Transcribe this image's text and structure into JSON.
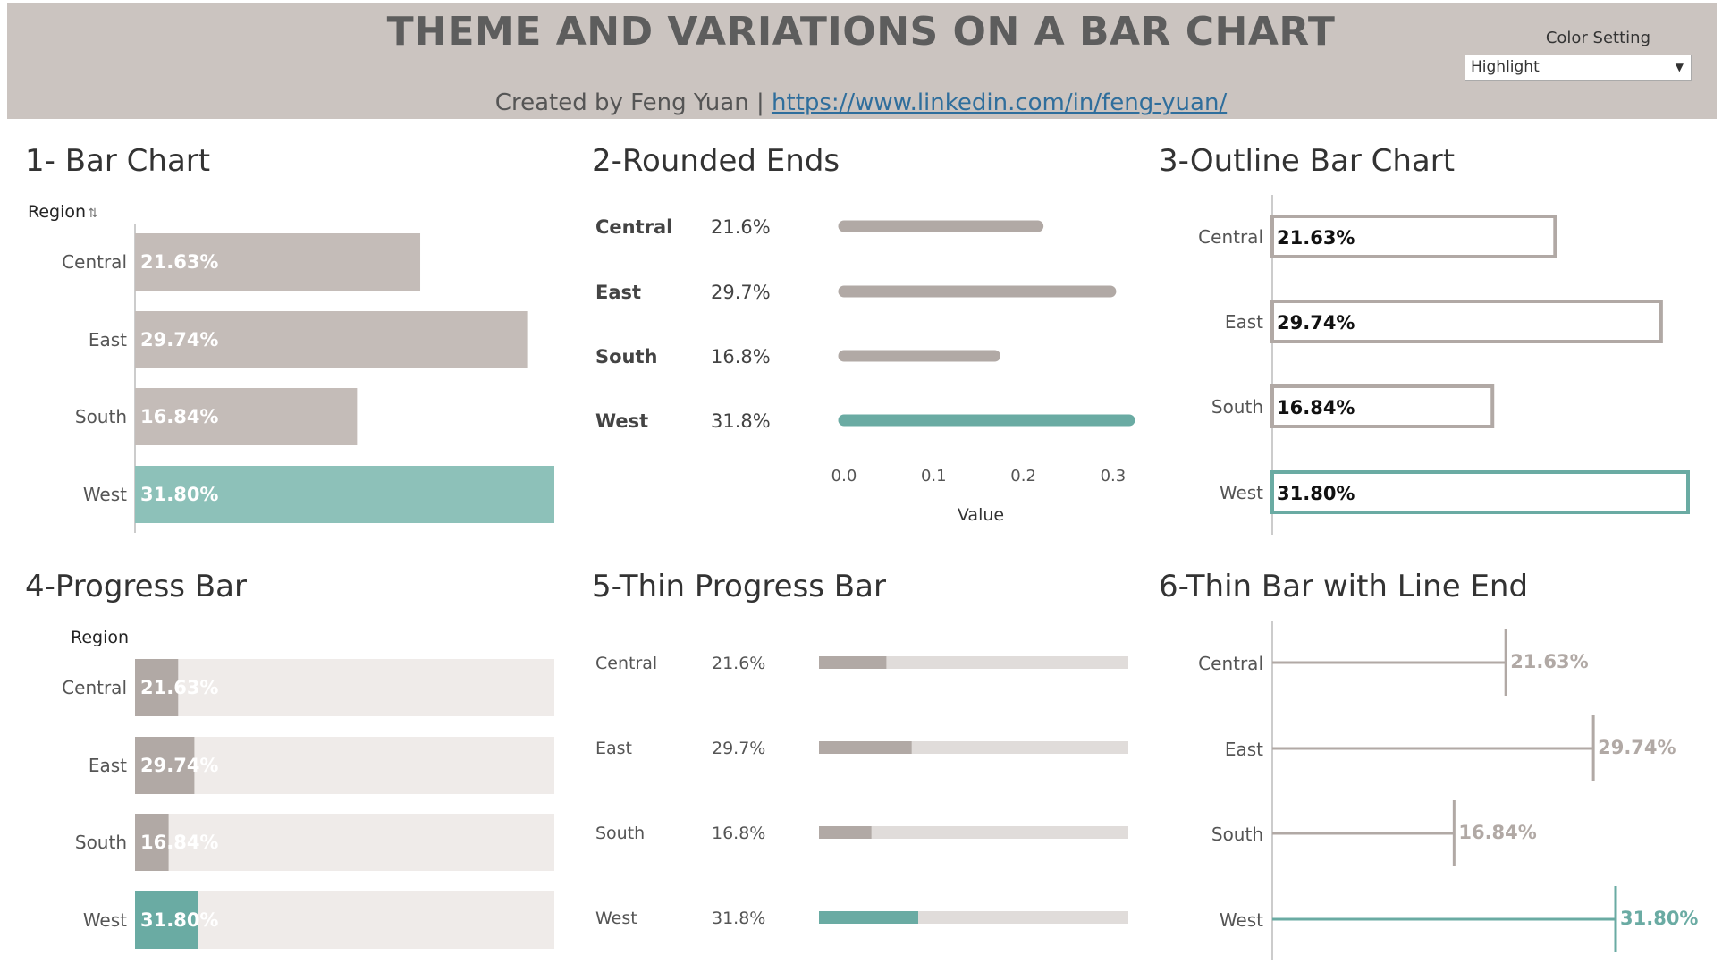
{
  "header": {
    "title": "THEME AND VARIATIONS ON A BAR CHART",
    "created_by": "Created by Feng Yuan |",
    "link": "https://www.linkedin.com/in/feng-yuan/",
    "color_setting_label": "Color Setting",
    "color_setting_value": "Highlight"
  },
  "colors": {
    "base": "#c4bcb8",
    "base_dark": "#b1a9a5",
    "highlight": "#8dc1b9",
    "highlight_dark": "#6aaba3",
    "track": "#efebe9",
    "thin_track": "#e0dcda"
  },
  "panels": {
    "p1": {
      "title": "1- Bar Chart",
      "field": "Region"
    },
    "p2": {
      "title": "2-Rounded Ends",
      "axis_title": "Value"
    },
    "p3": {
      "title": "3-Outline Bar Chart"
    },
    "p4": {
      "title": "4-Progress Bar",
      "field": "Region"
    },
    "p5": {
      "title": "5-Thin Progress Bar"
    },
    "p6": {
      "title": "6-Thin Bar with Line End"
    }
  },
  "chart_data": [
    {
      "type": "bar",
      "title": "1- Bar Chart",
      "categories": [
        "Central",
        "East",
        "South",
        "West"
      ],
      "values": [
        0.2163,
        0.2974,
        0.1684,
        0.318
      ],
      "labels": [
        "21.63%",
        "29.74%",
        "16.84%",
        "31.80%"
      ],
      "highlight": "West"
    },
    {
      "type": "bar",
      "title": "2-Rounded Ends",
      "categories": [
        "Central",
        "East",
        "South",
        "West"
      ],
      "values": [
        0.216,
        0.297,
        0.168,
        0.318
      ],
      "labels": [
        "21.6%",
        "29.7%",
        "16.8%",
        "31.8%"
      ],
      "xlabel": "Value",
      "xticks": [
        "0.0",
        "0.1",
        "0.2",
        "0.3"
      ],
      "xlim": [
        0,
        0.33
      ],
      "highlight": "West"
    },
    {
      "type": "bar",
      "title": "3-Outline Bar Chart",
      "categories": [
        "Central",
        "East",
        "South",
        "West"
      ],
      "values": [
        0.2163,
        0.2974,
        0.1684,
        0.318
      ],
      "labels": [
        "21.63%",
        "29.74%",
        "16.84%",
        "31.80%"
      ],
      "highlight": "West"
    },
    {
      "type": "bar",
      "title": "4-Progress Bar",
      "categories": [
        "Central",
        "East",
        "South",
        "West"
      ],
      "values": [
        0.2163,
        0.2974,
        0.1684,
        0.318
      ],
      "labels": [
        "21.63%",
        "29.74%",
        "16.84%",
        "31.80%"
      ],
      "max": 1.0,
      "highlight": "West"
    },
    {
      "type": "bar",
      "title": "5-Thin Progress Bar",
      "categories": [
        "Central",
        "East",
        "South",
        "West"
      ],
      "values": [
        0.216,
        0.297,
        0.168,
        0.318
      ],
      "labels": [
        "21.6%",
        "29.7%",
        "16.8%",
        "31.8%"
      ],
      "max": 1.0,
      "highlight": "West"
    },
    {
      "type": "bar",
      "title": "6-Thin Bar with Line End",
      "categories": [
        "Central",
        "East",
        "South",
        "West"
      ],
      "values": [
        0.2163,
        0.2974,
        0.1684,
        0.318
      ],
      "labels": [
        "21.63%",
        "29.74%",
        "16.84%",
        "31.80%"
      ],
      "highlight": "West"
    }
  ]
}
